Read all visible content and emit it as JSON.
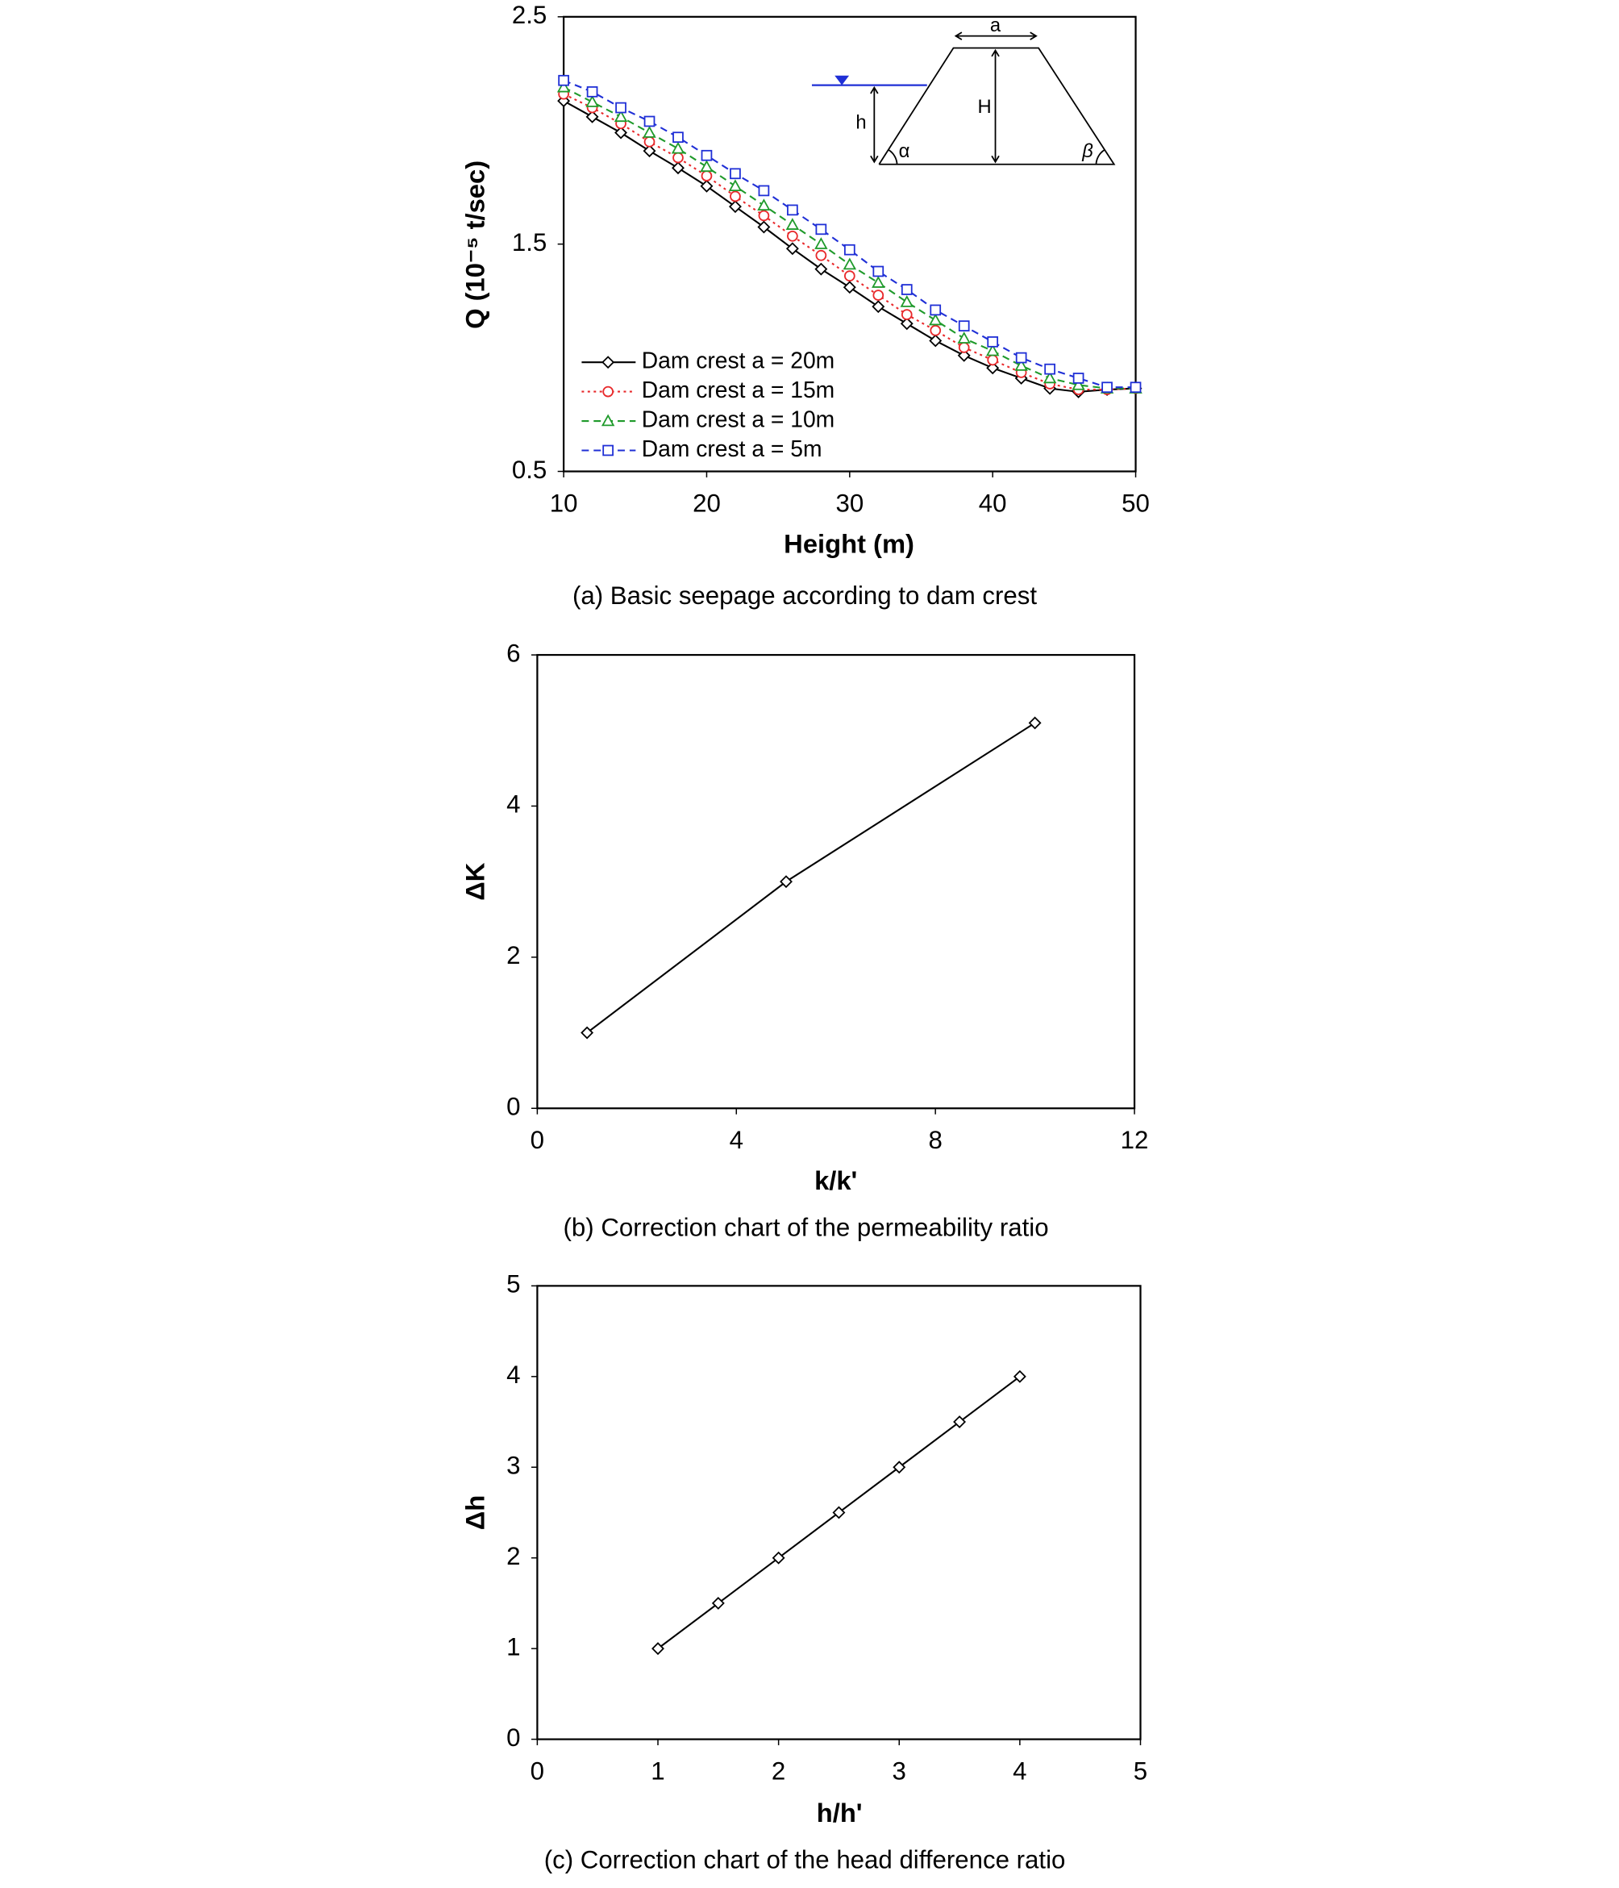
{
  "chart_data": [
    {
      "type": "line",
      "caption": "(a) Basic seepage according to dam crest",
      "xlabel": "Height (m)",
      "ylabel": "Q (10⁻⁵ t/sec)",
      "x": [
        10,
        12,
        14,
        16,
        18,
        20,
        22,
        24,
        26,
        28,
        30,
        32,
        34,
        36,
        38,
        40,
        42,
        44,
        46,
        48,
        50
      ],
      "xlim": [
        10,
        50
      ],
      "xticks": [
        10,
        20,
        30,
        40,
        50
      ],
      "ylim": [
        0.5,
        2.5
      ],
      "yticks": [
        0.5,
        1.5,
        2.5
      ],
      "legend": "lower left",
      "diagram_labels": [
        "a",
        "H",
        "h",
        "α",
        "β"
      ],
      "series": [
        {
          "name": "Dam crest a = 20m",
          "color": "#000000",
          "marker": "diamond",
          "line_style": "solid",
          "values": [
            2.13,
            2.06,
            1.99,
            1.91,
            1.835,
            1.755,
            1.665,
            1.575,
            1.48,
            1.39,
            1.31,
            1.225,
            1.15,
            1.075,
            1.01,
            0.955,
            0.91,
            0.865,
            0.85,
            0.86,
            0.865
          ]
        },
        {
          "name": "Dam crest a = 15m",
          "color": "#e8292b",
          "marker": "circle",
          "line_style": "dotted",
          "values": [
            2.16,
            2.1,
            2.03,
            1.95,
            1.88,
            1.8,
            1.71,
            1.625,
            1.535,
            1.45,
            1.36,
            1.275,
            1.19,
            1.12,
            1.045,
            0.99,
            0.935,
            0.885,
            0.86,
            0.86,
            0.865
          ]
        },
        {
          "name": "Dam crest a = 10m",
          "color": "#1f9a2b",
          "marker": "triangle",
          "line_style": "dashed",
          "values": [
            2.19,
            2.125,
            2.06,
            1.99,
            1.92,
            1.84,
            1.755,
            1.67,
            1.585,
            1.5,
            1.41,
            1.33,
            1.245,
            1.165,
            1.085,
            1.03,
            0.965,
            0.91,
            0.88,
            0.865,
            0.865
          ]
        },
        {
          "name": "Dam crest a = 5m",
          "color": "#1f2fd6",
          "marker": "square",
          "line_style": "dashed",
          "values": [
            2.22,
            2.17,
            2.1,
            2.04,
            1.97,
            1.89,
            1.81,
            1.735,
            1.65,
            1.565,
            1.475,
            1.38,
            1.3,
            1.21,
            1.14,
            1.07,
            1.0,
            0.95,
            0.91,
            0.87,
            0.87
          ]
        }
      ]
    },
    {
      "type": "line",
      "caption": "(b) Correction chart of the permeability ratio",
      "xlabel": "k/k'",
      "ylabel": "ΔK",
      "x": [
        1,
        5,
        10
      ],
      "values": [
        1,
        3,
        5.1
      ],
      "color": "#000000",
      "marker": "diamond",
      "xlim": [
        0,
        12
      ],
      "xticks": [
        0,
        4,
        8,
        12
      ],
      "ylim": [
        0,
        6
      ],
      "yticks": [
        0,
        2,
        4,
        6
      ]
    },
    {
      "type": "line",
      "caption": "(c) Correction chart of the head difference ratio",
      "xlabel": "h/h'",
      "ylabel": "Δh",
      "x": [
        1,
        1.5,
        2,
        2.5,
        3,
        3.5,
        4
      ],
      "values": [
        1,
        1.5,
        2,
        2.5,
        3,
        3.5,
        4
      ],
      "color": "#000000",
      "marker": "diamond",
      "xlim": [
        0,
        5
      ],
      "xticks": [
        0,
        1,
        2,
        3,
        4,
        5
      ],
      "ylim": [
        0,
        5
      ],
      "yticks": [
        0,
        1,
        2,
        3,
        4,
        5
      ]
    }
  ]
}
